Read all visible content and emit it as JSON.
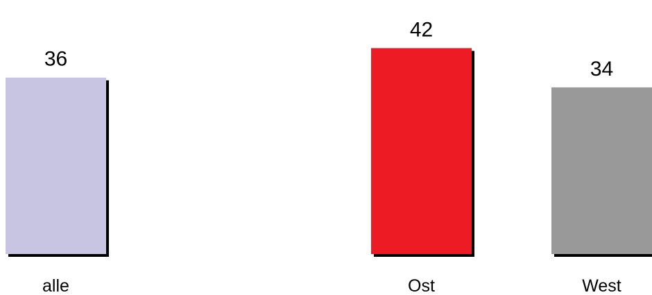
{
  "chart_data": {
    "type": "bar",
    "categories": [
      "alle",
      "Ost",
      "West"
    ],
    "values": [
      36,
      42,
      34
    ],
    "title": "",
    "xlabel": "",
    "ylabel": "",
    "ylim": [
      0,
      50
    ],
    "grid": false,
    "legend": "none",
    "colors": [
      "#c8c5e3",
      "#ed1c24",
      "#999999"
    ],
    "shadow_color": "#000000"
  }
}
